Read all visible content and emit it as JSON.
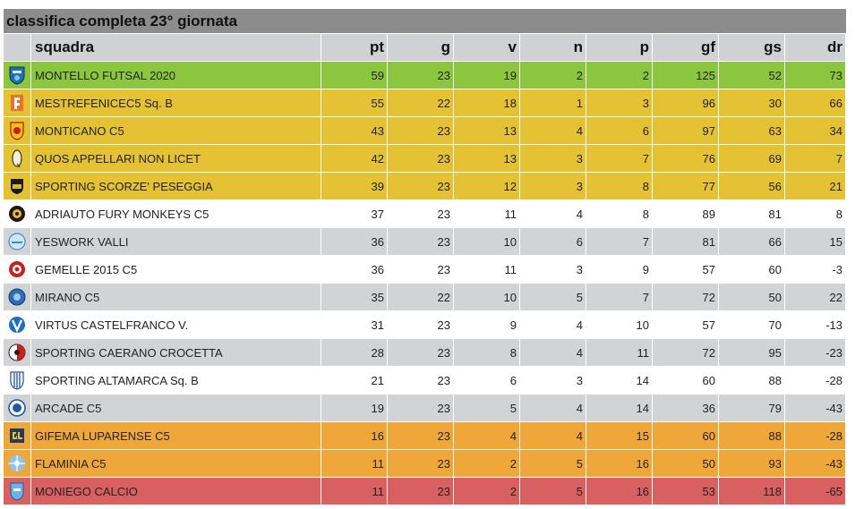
{
  "title": "classifica completa 23° giornata",
  "columns": {
    "squadra": "squadra",
    "pt": "pt",
    "g": "g",
    "v": "v",
    "n": "n",
    "p": "p",
    "gf": "gf",
    "gs": "gs",
    "dr": "dr"
  },
  "zone_colors": {
    "leader": "#8cc63f",
    "playoff": "#e5c233",
    "white": "#ffffff",
    "grey": "#d2d3d5",
    "playout": "#f0a73a",
    "relegation": "#d96060",
    "header": "#cfd1d4",
    "title_bar": "#8c8c8c"
  },
  "rows": [
    {
      "team": "MONTELLO FUTSAL 2020",
      "pt": "59",
      "g": "23",
      "v": "19",
      "n": "2",
      "p": "2",
      "gf": "125",
      "gs": "52",
      "dr": "73",
      "zone": "leader",
      "logo": "shield-blue-icon"
    },
    {
      "team": "MESTREFENICEC5 Sq. B",
      "pt": "55",
      "g": "22",
      "v": "18",
      "n": "1",
      "p": "3",
      "gf": "96",
      "gs": "30",
      "dr": "66",
      "zone": "playoff",
      "logo": "phoenix-orange-icon"
    },
    {
      "team": "MONTICANO C5",
      "pt": "43",
      "g": "23",
      "v": "13",
      "n": "4",
      "p": "6",
      "gf": "97",
      "gs": "63",
      "dr": "34",
      "zone": "playoff",
      "logo": "crest-red-yellow-icon"
    },
    {
      "team": "QUOS APPELLARI NON LICET",
      "pt": "42",
      "g": "23",
      "v": "13",
      "n": "3",
      "p": "7",
      "gf": "76",
      "gs": "69",
      "dr": "7",
      "zone": "playoff",
      "logo": "oval-q-icon"
    },
    {
      "team": "SPORTING SCORZE' PESEGGIA",
      "pt": "39",
      "g": "23",
      "v": "12",
      "n": "3",
      "p": "8",
      "gf": "77",
      "gs": "56",
      "dr": "21",
      "zone": "playoff",
      "logo": "shield-dark-icon"
    },
    {
      "team": "ADRIAUTO FURY MONKEYS C5",
      "pt": "37",
      "g": "23",
      "v": "11",
      "n": "4",
      "p": "8",
      "gf": "89",
      "gs": "81",
      "dr": "8",
      "zone": "white",
      "logo": "round-monkey-icon"
    },
    {
      "team": "YESWORK VALLI",
      "pt": "36",
      "g": "23",
      "v": "10",
      "n": "6",
      "p": "7",
      "gf": "81",
      "gs": "66",
      "dr": "15",
      "zone": "grey",
      "logo": "round-lightblue-icon"
    },
    {
      "team": "GEMELLE 2015 C5",
      "pt": "36",
      "g": "23",
      "v": "11",
      "n": "3",
      "p": "9",
      "gf": "57",
      "gs": "60",
      "dr": "-3",
      "zone": "white",
      "logo": "round-red-icon"
    },
    {
      "team": "MIRANO C5",
      "pt": "35",
      "g": "22",
      "v": "10",
      "n": "5",
      "p": "7",
      "gf": "72",
      "gs": "50",
      "dr": "22",
      "zone": "grey",
      "logo": "round-blue-icon"
    },
    {
      "team": "VIRTUS CASTELFRANCO V.",
      "pt": "31",
      "g": "23",
      "v": "9",
      "n": "4",
      "p": "10",
      "gf": "57",
      "gs": "70",
      "dr": "-13",
      "zone": "white",
      "logo": "v-blue-icon"
    },
    {
      "team": "SPORTING CAERANO CROCETTA",
      "pt": "28",
      "g": "23",
      "v": "8",
      "n": "4",
      "p": "11",
      "gf": "72",
      "gs": "95",
      "dr": "-23",
      "zone": "grey",
      "logo": "round-redblack-icon"
    },
    {
      "team": "SPORTING ALTAMARCA Sq. B",
      "pt": "21",
      "g": "23",
      "v": "6",
      "n": "3",
      "p": "14",
      "gf": "60",
      "gs": "88",
      "dr": "-28",
      "zone": "white",
      "logo": "shield-stripes-icon"
    },
    {
      "team": "ARCADE C5",
      "pt": "19",
      "g": "23",
      "v": "5",
      "n": "4",
      "p": "14",
      "gf": "36",
      "gs": "79",
      "dr": "-43",
      "zone": "grey",
      "logo": "round-arcade-icon"
    },
    {
      "team": "GIFEMA LUPARENSE C5",
      "pt": "16",
      "g": "23",
      "v": "4",
      "n": "4",
      "p": "15",
      "gf": "60",
      "gs": "88",
      "dr": "-28",
      "zone": "playout",
      "logo": "gl-navy-icon"
    },
    {
      "team": "FLAMINIA C5",
      "pt": "11",
      "g": "23",
      "v": "2",
      "n": "5",
      "p": "16",
      "gf": "50",
      "gs": "93",
      "dr": "-43",
      "zone": "playout",
      "logo": "ball-blue-icon"
    },
    {
      "team": "MONIEGO CALCIO",
      "pt": "11",
      "g": "23",
      "v": "2",
      "n": "5",
      "p": "16",
      "gf": "53",
      "gs": "118",
      "dr": "-65",
      "zone": "relegation",
      "logo": "shield-lightblue-icon"
    }
  ]
}
